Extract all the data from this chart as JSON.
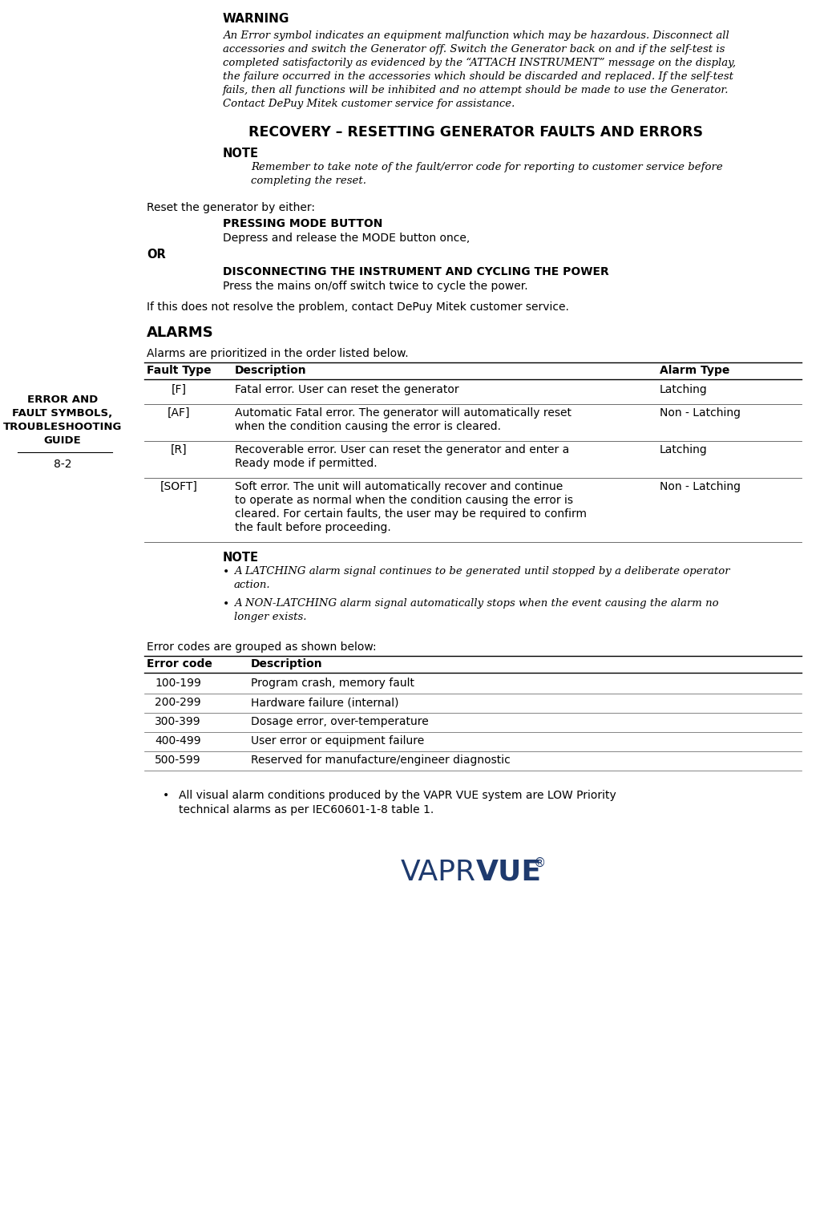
{
  "bg_color": "#ffffff",
  "sidebar_title_lines": [
    "ERROR AND",
    "FAULT SYMBOLS,",
    "TROUBLESHOOTING",
    "GUIDE"
  ],
  "sidebar_page": "8-2",
  "warning_heading": "WARNING",
  "warning_lines": [
    "An Error symbol indicates an equipment malfunction which may be hazardous. Disconnect all",
    "accessories and switch the Generator off. Switch the Generator back on and if the self-test is",
    "completed satisfactorily as evidenced by the “ATTACH INSTRUMENT” message on the display,",
    "the failure occurred in the accessories which should be discarded and replaced. If the self-test",
    "fails, then all functions will be inhibited and no attempt should be made to use the Generator.",
    "Contact DePuy Mitek customer service for assistance."
  ],
  "recovery_heading": "RECOVERY – RESETTING GENERATOR FAULTS AND ERRORS",
  "note_heading": "NOTE",
  "note_lines": [
    "Remember to take note of the fault/error code for reporting to customer service before",
    "completing the reset."
  ],
  "reset_intro": "Reset the generator by either:",
  "pressing_heading": "PRESSING MODE BUTTON",
  "pressing_body": "Depress and release the MODE button once,",
  "or_text": "OR",
  "disconnecting_heading": "DISCONNECTING THE INSTRUMENT AND CYCLING THE POWER",
  "disconnecting_body": "Press the mains on/off switch twice to cycle the power.",
  "if_resolve": "If this does not resolve the problem, contact DePuy Mitek customer service.",
  "alarms_heading": "ALARMS",
  "alarms_intro": "Alarms are prioritized in the order listed below.",
  "table1_headers": [
    "Fault Type",
    "Description",
    "Alarm Type"
  ],
  "table1_rows": [
    {
      "col0": "[F]",
      "col1_lines": [
        "Fatal error. User can reset the generator"
      ],
      "col2": "Latching"
    },
    {
      "col0": "[AF]",
      "col1_lines": [
        "Automatic Fatal error. The generator will automatically reset",
        "when the condition causing the error is cleared."
      ],
      "col2": "Non - Latching"
    },
    {
      "col0": "[R]",
      "col1_lines": [
        "Recoverable error. User can reset the generator and enter a",
        "Ready mode if permitted."
      ],
      "col2": "Latching"
    },
    {
      "col0": "[SOFT]",
      "col1_lines": [
        "Soft error. The unit will automatically recover and continue",
        "to operate as normal when the condition causing the error is",
        "cleared. For certain faults, the user may be required to confirm",
        "the fault before proceeding."
      ],
      "col2": "Non - Latching"
    }
  ],
  "note2_heading": "NOTE",
  "note2_bullet1_lines": [
    "A LATCHING alarm signal continues to be generated until stopped by a deliberate operator",
    "action."
  ],
  "note2_bullet2_lines": [
    "A NON-LATCHING alarm signal automatically stops when the event causing the alarm no",
    "longer exists."
  ],
  "error_codes_intro": "Error codes are grouped as shown below:",
  "table2_headers": [
    "Error code",
    "Description"
  ],
  "table2_rows": [
    [
      "100-199",
      "Program crash, memory fault"
    ],
    [
      "200-299",
      "Hardware failure (internal)"
    ],
    [
      "300-399",
      "Dosage error, over-temperature"
    ],
    [
      "400-499",
      "User error or equipment failure"
    ],
    [
      "500-599",
      "Reserved for manufacture/engineer diagnostic"
    ]
  ],
  "final_bullet_lines": [
    "All visual alarm conditions produced by the VAPR VUE system are LOW Priority",
    "technical alarms as per IEC60601-1-8 table 1."
  ],
  "vapr_color": "#1e3a6e",
  "logo_vapr": "VAPR",
  "logo_vue": "VUE",
  "reg": "®"
}
